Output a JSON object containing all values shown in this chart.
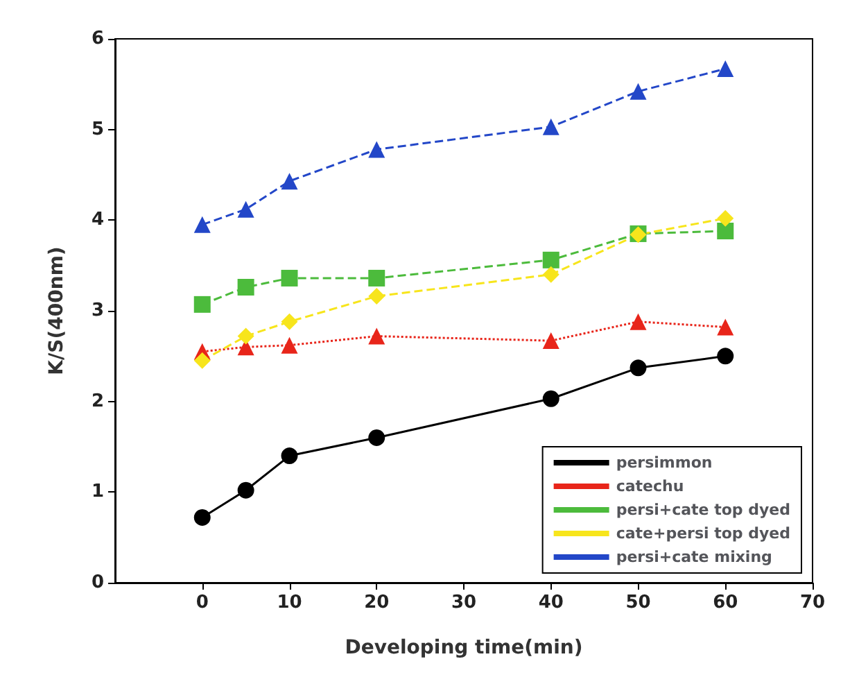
{
  "chart_data": {
    "type": "line",
    "xlabel": "Developing time(min)",
    "ylabel": "K/S(400nm)",
    "x": [
      0,
      5,
      10,
      20,
      40,
      50,
      60
    ],
    "xlim": [
      -10,
      70
    ],
    "xticks": [
      0,
      10,
      20,
      30,
      40,
      50,
      60,
      70
    ],
    "ylim": [
      0,
      6
    ],
    "yticks": [
      0,
      1,
      2,
      3,
      4,
      5,
      6
    ],
    "grid": false,
    "legend": "bottom right",
    "series": [
      {
        "name": "persimmon",
        "color": "#000000",
        "marker": "circle",
        "line_style": "solid",
        "values": [
          0.72,
          1.02,
          1.4,
          1.6,
          2.03,
          2.37,
          2.5
        ]
      },
      {
        "name": "catechu",
        "color": "#e8251a",
        "marker": "triangle",
        "line_style": "dotted",
        "values": [
          2.55,
          2.6,
          2.62,
          2.72,
          2.67,
          2.88,
          2.82
        ]
      },
      {
        "name": "persi+cate top dyed",
        "color": "#4cbb3c",
        "marker": "square",
        "line_style": "dashed",
        "values": [
          3.07,
          3.26,
          3.36,
          3.36,
          3.56,
          3.85,
          3.88
        ]
      },
      {
        "name": "cate+persi top dyed",
        "color": "#f7e51c",
        "marker": "diamond",
        "line_style": "dashed",
        "values": [
          2.45,
          2.72,
          2.88,
          3.16,
          3.4,
          3.84,
          4.02
        ]
      },
      {
        "name": "persi+cate mixing",
        "color": "#2347c8",
        "marker": "triangle",
        "line_style": "dashed",
        "values": [
          3.95,
          4.12,
          4.43,
          4.78,
          5.03,
          5.42,
          5.67
        ]
      }
    ]
  }
}
